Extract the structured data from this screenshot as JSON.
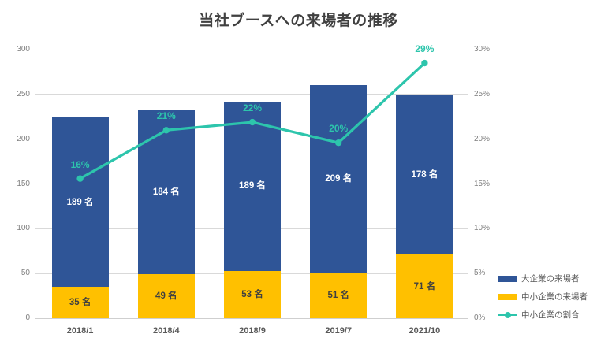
{
  "title": "当社ブースへの来場者の推移",
  "chart_data": {
    "type": "bar",
    "subtype": "stacked-column-with-line",
    "title": "当社ブースへの来場者の推移",
    "categories": [
      "2018/1",
      "2018/4",
      "2018/9",
      "2019/7",
      "2021/10"
    ],
    "series": [
      {
        "name": "大企業の来場者",
        "type": "bar",
        "stack_position": "top",
        "color": "#2F5597",
        "values": [
          189,
          184,
          189,
          209,
          178
        ],
        "labels": [
          "189 名",
          "184 名",
          "189 名",
          "209 名",
          "178 名"
        ],
        "label_color": "#ffffff"
      },
      {
        "name": "中小企業の来場者",
        "type": "bar",
        "stack_position": "bottom",
        "color": "#FFC000",
        "values": [
          35,
          49,
          53,
          51,
          71
        ],
        "labels": [
          "35 名",
          "49 名",
          "53 名",
          "51 名",
          "71 名"
        ],
        "label_color": "#404040"
      },
      {
        "name": "中小企業の割合",
        "type": "line",
        "axis": "right",
        "color": "#2DC5AC",
        "values": [
          15.6,
          21.0,
          21.9,
          19.6,
          28.5
        ],
        "labels": [
          "16%",
          "21%",
          "22%",
          "20%",
          "29%"
        ]
      }
    ],
    "totals": [
      224,
      233,
      242,
      260,
      249
    ],
    "left_axis": {
      "min": 0,
      "max": 300,
      "step": 50,
      "ticks": [
        "0",
        "50",
        "100",
        "150",
        "200",
        "250",
        "300"
      ]
    },
    "right_axis": {
      "min": 0,
      "max": 30,
      "step": 5,
      "ticks": [
        "0%",
        "5%",
        "10%",
        "15%",
        "20%",
        "25%",
        "30%"
      ]
    },
    "grid": true,
    "legend_position": "right"
  },
  "colors": {
    "large_company_bar": "#2F5597",
    "sme_bar": "#FFC000",
    "ratio_line": "#2DC5AC",
    "gridline": "#d9d9d9",
    "title_text": "#404040",
    "axis_text": "#7f7f7f",
    "category_text": "#595959",
    "legend_text": "#595959"
  }
}
